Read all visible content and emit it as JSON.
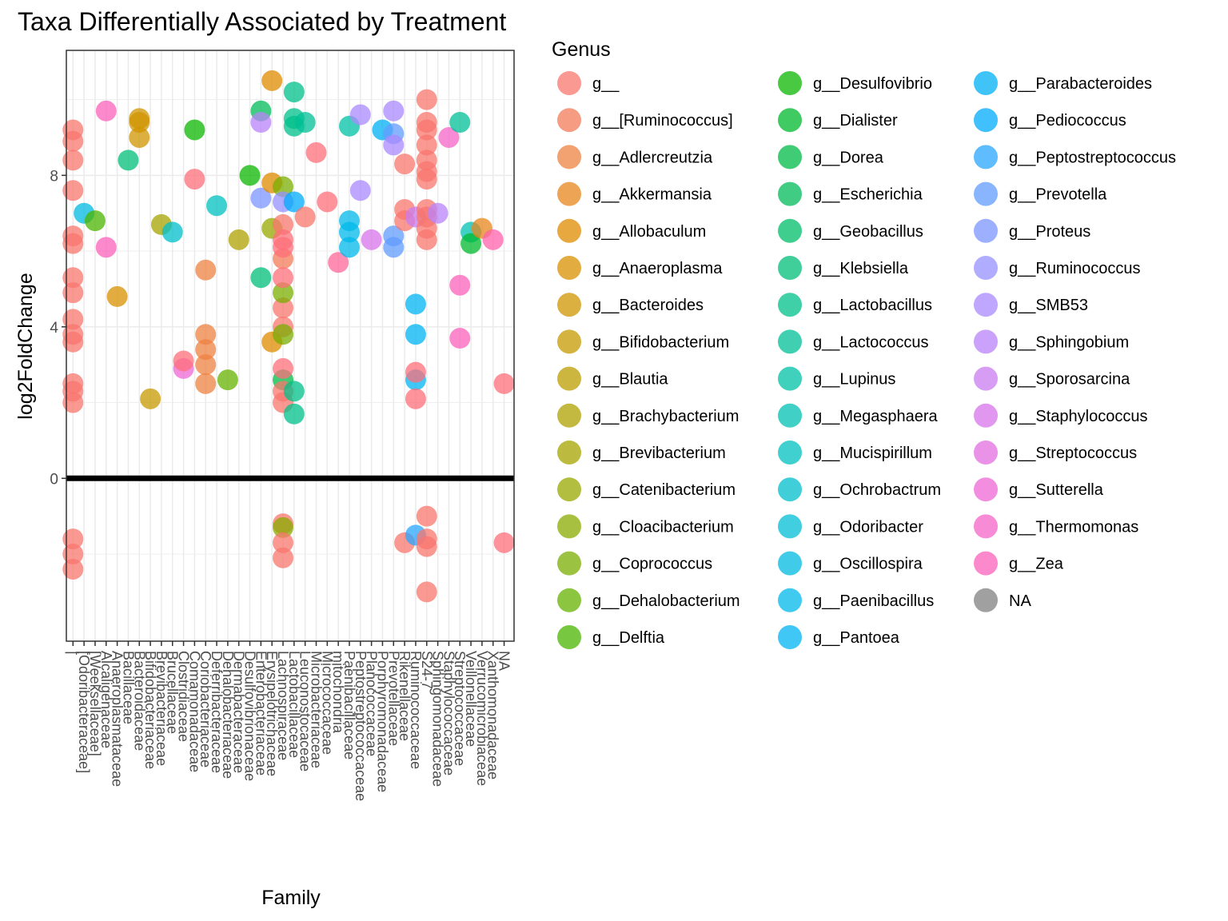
{
  "chart_data": {
    "type": "scatter",
    "title": "Taxa Differentially Associated by Treatment",
    "xlabel": "Family",
    "ylabel": "log2FoldChange",
    "ylim": [
      -4.3,
      11.3
    ],
    "yticks": [
      0,
      4,
      8
    ],
    "reference_line": 0,
    "grid": true,
    "legend_position": "right",
    "legend_title": "Genus",
    "categories": [
      "",
      "[Odoribacteraceae]",
      "[Weeksellaceae]",
      "Alcaligenaceae",
      "Anaeroplasmataceae",
      "Bacillaceae",
      "Bacteroidaceae",
      "Bifidobacteriaceae",
      "Brevibacteriaceae",
      "Brucellaceae",
      "Clostridiaceae",
      "Comamonadaceae",
      "Coriobacteriaceae",
      "Deferribacteraceae",
      "Dehalobacteriaceae",
      "Dermabacteraceae",
      "Desulfovibrionaceae",
      "Enterobacteriaceae",
      "Erysipelotrichaceae",
      "Lachnospiraceae",
      "Lactobacillaceae",
      "Leuconostocaceae",
      "Microbacteriaceae",
      "Micrococcaceae",
      "mitochondria",
      "Paenibacillaceae",
      "Peptostreptococcaceae",
      "Planococcaceae",
      "Porphyromonadaceae",
      "Prevotellaceae",
      "Rikenellaceae",
      "Ruminococcaceae",
      "S24-7",
      "Sphingomonadaceae",
      "Staphylococcaceae",
      "Streptococcaceae",
      "Veillonellaceae",
      "Verrucomicrobiaceae",
      "Xanthomonadaceae",
      "NA"
    ],
    "genera": [
      {
        "name": "g__",
        "color": "#F8766D"
      },
      {
        "name": "g__[Ruminococcus]",
        "color": "#F37B59"
      },
      {
        "name": "g__Adlercreutzia",
        "color": "#ED8141"
      },
      {
        "name": "g__Akkermansia",
        "color": "#E7861B"
      },
      {
        "name": "g__Allobaculum",
        "color": "#DF8B00"
      },
      {
        "name": "g__Anaeroplasma",
        "color": "#D89000"
      },
      {
        "name": "g__Bacteroides",
        "color": "#CF9400"
      },
      {
        "name": "g__Bifidobacterium",
        "color": "#C59900"
      },
      {
        "name": "g__Blautia",
        "color": "#BB9D00"
      },
      {
        "name": "g__Brachybacterium",
        "color": "#B0A100"
      },
      {
        "name": "g__Brevibacterium",
        "color": "#A5A400"
      },
      {
        "name": "g__Catenibacterium",
        "color": "#98A800"
      },
      {
        "name": "g__Cloacibacterium",
        "color": "#8AAB00"
      },
      {
        "name": "g__Coprococcus",
        "color": "#7AAE00"
      },
      {
        "name": "g__Dehalobacterium",
        "color": "#66B100"
      },
      {
        "name": "g__Delftia",
        "color": "#4BB400"
      },
      {
        "name": "g__Desulfovibrio",
        "color": "#0CB702"
      },
      {
        "name": "g__Dialister",
        "color": "#00B92D"
      },
      {
        "name": "g__Dorea",
        "color": "#00BB46"
      },
      {
        "name": "g__Escherichia",
        "color": "#00BC59"
      },
      {
        "name": "g__Geobacillus",
        "color": "#00BE6A"
      },
      {
        "name": "g__Klebsiella",
        "color": "#00BF7A"
      },
      {
        "name": "g__Lactobacillus",
        "color": "#00C089"
      },
      {
        "name": "g__Lactococcus",
        "color": "#00C097"
      },
      {
        "name": "g__Lupinus",
        "color": "#00C1A5"
      },
      {
        "name": "g__Megasphaera",
        "color": "#00C0B2"
      },
      {
        "name": "g__Mucispirillum",
        "color": "#00C0BF"
      },
      {
        "name": "g__Ochrobactrum",
        "color": "#00BFCB"
      },
      {
        "name": "g__Odoribacter",
        "color": "#00BDD6"
      },
      {
        "name": "g__Oscillospira",
        "color": "#00BBE0"
      },
      {
        "name": "g__Paenibacillus",
        "color": "#00B8EA"
      },
      {
        "name": "g__Pantoea",
        "color": "#00B4F3"
      },
      {
        "name": "g__Parabacteroides",
        "color": "#00B0F6"
      },
      {
        "name": "g__Pediococcus",
        "color": "#00ABFB"
      },
      {
        "name": "g__Peptostreptococcus",
        "color": "#28A5FF"
      },
      {
        "name": "g__Prevotella",
        "color": "#619CFF"
      },
      {
        "name": "g__Proteus",
        "color": "#7C96FF"
      },
      {
        "name": "g__Ruminococcus",
        "color": "#9590FF"
      },
      {
        "name": "g__SMB53",
        "color": "#A989FF"
      },
      {
        "name": "g__Sphingobium",
        "color": "#BA83F9"
      },
      {
        "name": "g__Sporosarcina",
        "color": "#C97CF2"
      },
      {
        "name": "g__Staphylococcus",
        "color": "#D774EA"
      },
      {
        "name": "g__Streptococcus",
        "color": "#E36DE0"
      },
      {
        "name": "g__Sutterella",
        "color": "#ED67D5"
      },
      {
        "name": "g__Thermomonas",
        "color": "#F564C8"
      },
      {
        "name": "g__Zea",
        "color": "#FB61BB"
      },
      {
        "name": "NA",
        "color": "#FF61AB"
      },
      {
        "name": "",
        "color": "#FF659A"
      },
      {
        "name": "",
        "color": "#FF6A89"
      },
      {
        "name": "",
        "color": "#FE6F79"
      },
      {
        "name": "",
        "color": "#808080"
      }
    ],
    "points": [
      {
        "family": "",
        "genus": 0,
        "y": 9.2
      },
      {
        "family": "",
        "genus": 0,
        "y": 8.9
      },
      {
        "family": "",
        "genus": 0,
        "y": 8.4
      },
      {
        "family": "",
        "genus": 0,
        "y": 7.6
      },
      {
        "family": "",
        "genus": 0,
        "y": 6.4
      },
      {
        "family": "",
        "genus": 0,
        "y": 6.2
      },
      {
        "family": "",
        "genus": 0,
        "y": 5.3
      },
      {
        "family": "",
        "genus": 0,
        "y": 4.9
      },
      {
        "family": "",
        "genus": 0,
        "y": 4.2
      },
      {
        "family": "",
        "genus": 0,
        "y": 3.8
      },
      {
        "family": "",
        "genus": 0,
        "y": 3.6
      },
      {
        "family": "",
        "genus": 0,
        "y": 2.5
      },
      {
        "family": "",
        "genus": 0,
        "y": 2.3
      },
      {
        "family": "",
        "genus": 0,
        "y": 2.0
      },
      {
        "family": "",
        "genus": 0,
        "y": -1.6
      },
      {
        "family": "",
        "genus": 0,
        "y": -2.0
      },
      {
        "family": "",
        "genus": 0,
        "y": -2.4
      },
      {
        "family": "[Odoribacteraceae]",
        "genus": 29,
        "y": 7.0
      },
      {
        "family": "[Weeksellaceae]",
        "genus": 15,
        "y": 6.8
      },
      {
        "family": "Alcaligenaceae",
        "genus": 45,
        "y": 9.7
      },
      {
        "family": "Alcaligenaceae",
        "genus": 45,
        "y": 6.1
      },
      {
        "family": "Anaeroplasmataceae",
        "genus": 5,
        "y": 4.8
      },
      {
        "family": "Bacillaceae",
        "genus": 21,
        "y": 8.4
      },
      {
        "family": "Bacteroidaceae",
        "genus": 6,
        "y": 9.5
      },
      {
        "family": "Bacteroidaceae",
        "genus": 6,
        "y": 9.4
      },
      {
        "family": "Bacteroidaceae",
        "genus": 6,
        "y": 9.0
      },
      {
        "family": "Bifidobacteriaceae",
        "genus": 7,
        "y": 2.1
      },
      {
        "family": "Brevibacteriaceae",
        "genus": 10,
        "y": 6.7
      },
      {
        "family": "Brucellaceae",
        "genus": 27,
        "y": 6.5
      },
      {
        "family": "Clostridiaceae",
        "genus": 43,
        "y": 2.9
      },
      {
        "family": "Clostridiaceae",
        "genus": 49,
        "y": 3.1
      },
      {
        "family": "Comamonadaceae",
        "genus": 16,
        "y": 9.2
      },
      {
        "family": "Comamonadaceae",
        "genus": 49,
        "y": 7.9
      },
      {
        "family": "Coriobacteriaceae",
        "genus": 2,
        "y": 5.5
      },
      {
        "family": "Coriobacteriaceae",
        "genus": 2,
        "y": 3.8
      },
      {
        "family": "Coriobacteriaceae",
        "genus": 2,
        "y": 3.4
      },
      {
        "family": "Coriobacteriaceae",
        "genus": 2,
        "y": 3.0
      },
      {
        "family": "Coriobacteriaceae",
        "genus": 2,
        "y": 2.5
      },
      {
        "family": "Deferribacteraceae",
        "genus": 26,
        "y": 7.2
      },
      {
        "family": "Dehalobacteriaceae",
        "genus": 14,
        "y": 2.6
      },
      {
        "family": "Dermabacteraceae",
        "genus": 9,
        "y": 6.3
      },
      {
        "family": "Desulfovibrionaceae",
        "genus": 16,
        "y": 8.0
      },
      {
        "family": "Enterobacteriaceae",
        "genus": 19,
        "y": 9.7
      },
      {
        "family": "Enterobacteriaceae",
        "genus": 36,
        "y": 7.4
      },
      {
        "family": "Enterobacteriaceae",
        "genus": 39,
        "y": 9.4
      },
      {
        "family": "Enterobacteriaceae",
        "genus": 21,
        "y": 5.3
      },
      {
        "family": "Erysipelotrichaceae",
        "genus": 4,
        "y": 10.5
      },
      {
        "family": "Erysipelotrichaceae",
        "genus": 4,
        "y": 7.8
      },
      {
        "family": "Erysipelotrichaceae",
        "genus": 11,
        "y": 6.6
      },
      {
        "family": "Erysipelotrichaceae",
        "genus": 4,
        "y": 3.6
      },
      {
        "family": "Lachnospiraceae",
        "genus": 0,
        "y": 6.7
      },
      {
        "family": "Lachnospiraceae",
        "genus": 1,
        "y": 5.8
      },
      {
        "family": "Lachnospiraceae",
        "genus": 0,
        "y": 4.5
      },
      {
        "family": "Lachnospiraceae",
        "genus": 0,
        "y": 4.0
      },
      {
        "family": "Lachnospiraceae",
        "genus": 13,
        "y": 7.7
      },
      {
        "family": "Lachnospiraceae",
        "genus": 13,
        "y": 4.9
      },
      {
        "family": "Lachnospiraceae",
        "genus": 13,
        "y": 3.8
      },
      {
        "family": "Lachnospiraceae",
        "genus": 18,
        "y": 2.6
      },
      {
        "family": "Lachnospiraceae",
        "genus": 37,
        "y": 7.3
      },
      {
        "family": "Lachnospiraceae",
        "genus": 49,
        "y": 6.3
      },
      {
        "family": "Lachnospiraceae",
        "genus": 49,
        "y": 6.1
      },
      {
        "family": "Lachnospiraceae",
        "genus": 49,
        "y": 5.3
      },
      {
        "family": "Lachnospiraceae",
        "genus": 49,
        "y": 2.9
      },
      {
        "family": "Lachnospiraceae",
        "genus": 0,
        "y": 2.3
      },
      {
        "family": "Lachnospiraceae",
        "genus": 0,
        "y": 2.0
      },
      {
        "family": "Lachnospiraceae",
        "genus": 0,
        "y": -1.2
      },
      {
        "family": "Lachnospiraceae",
        "genus": 12,
        "y": -1.3
      },
      {
        "family": "Lachnospiraceae",
        "genus": 0,
        "y": -1.7
      },
      {
        "family": "Lachnospiraceae",
        "genus": 0,
        "y": -2.1
      },
      {
        "family": "Lactobacillaceae",
        "genus": 22,
        "y": 10.2
      },
      {
        "family": "Lactobacillaceae",
        "genus": 22,
        "y": 9.5
      },
      {
        "family": "Lactobacillaceae",
        "genus": 22,
        "y": 9.3
      },
      {
        "family": "Lactobacillaceae",
        "genus": 22,
        "y": 2.3
      },
      {
        "family": "Lactobacillaceae",
        "genus": 22,
        "y": 1.7
      },
      {
        "family": "Lactobacillaceae",
        "genus": 33,
        "y": 7.3
      },
      {
        "family": "Leuconostocaceae",
        "genus": 23,
        "y": 9.4
      },
      {
        "family": "Leuconostocaceae",
        "genus": 0,
        "y": 6.9
      },
      {
        "family": "Microbacteriaceae",
        "genus": 49,
        "y": 8.6
      },
      {
        "family": "Micrococcaceae",
        "genus": 49,
        "y": 7.3
      },
      {
        "family": "mitochondria",
        "genus": 47,
        "y": 5.7
      },
      {
        "family": "Paenibacillaceae",
        "genus": 24,
        "y": 9.3
      },
      {
        "family": "Paenibacillaceae",
        "genus": 30,
        "y": 6.8
      },
      {
        "family": "Paenibacillaceae",
        "genus": 30,
        "y": 6.5
      },
      {
        "family": "Paenibacillaceae",
        "genus": 30,
        "y": 6.1
      },
      {
        "family": "Peptostreptococcaceae",
        "genus": 38,
        "y": 9.6
      },
      {
        "family": "Peptostreptococcaceae",
        "genus": 38,
        "y": 7.6
      },
      {
        "family": "Planococcaceae",
        "genus": 41,
        "y": 6.3
      },
      {
        "family": "Porphyromonadaceae",
        "genus": 32,
        "y": 9.2
      },
      {
        "family": "Prevotellaceae",
        "genus": 38,
        "y": 9.7
      },
      {
        "family": "Prevotellaceae",
        "genus": 35,
        "y": 9.1
      },
      {
        "family": "Prevotellaceae",
        "genus": 38,
        "y": 8.8
      },
      {
        "family": "Prevotellaceae",
        "genus": 35,
        "y": 6.4
      },
      {
        "family": "Prevotellaceae",
        "genus": 35,
        "y": 6.1
      },
      {
        "family": "Rikenellaceae",
        "genus": 0,
        "y": 8.3
      },
      {
        "family": "Rikenellaceae",
        "genus": 0,
        "y": 7.1
      },
      {
        "family": "Rikenellaceae",
        "genus": 0,
        "y": 6.8
      },
      {
        "family": "Rikenellaceae",
        "genus": 0,
        "y": -1.7
      },
      {
        "family": "Ruminococcaceae",
        "genus": 40,
        "y": 6.9
      },
      {
        "family": "Ruminococcaceae",
        "genus": 31,
        "y": 4.6
      },
      {
        "family": "Ruminococcaceae",
        "genus": 31,
        "y": 3.8
      },
      {
        "family": "Ruminococcaceae",
        "genus": 31,
        "y": 2.6
      },
      {
        "family": "Ruminococcaceae",
        "genus": 49,
        "y": 2.8
      },
      {
        "family": "Ruminococcaceae",
        "genus": 49,
        "y": 2.1
      },
      {
        "family": "Ruminococcaceae",
        "genus": 34,
        "y": -1.5
      },
      {
        "family": "S24-7",
        "genus": 0,
        "y": 10.0
      },
      {
        "family": "S24-7",
        "genus": 0,
        "y": 9.4
      },
      {
        "family": "S24-7",
        "genus": 0,
        "y": 9.2
      },
      {
        "family": "S24-7",
        "genus": 0,
        "y": 8.8
      },
      {
        "family": "S24-7",
        "genus": 0,
        "y": 8.4
      },
      {
        "family": "S24-7",
        "genus": 0,
        "y": 8.1
      },
      {
        "family": "S24-7",
        "genus": 0,
        "y": 7.9
      },
      {
        "family": "S24-7",
        "genus": 0,
        "y": 7.1
      },
      {
        "family": "S24-7",
        "genus": 0,
        "y": 6.9
      },
      {
        "family": "S24-7",
        "genus": 0,
        "y": 6.6
      },
      {
        "family": "S24-7",
        "genus": 0,
        "y": 6.3
      },
      {
        "family": "S24-7",
        "genus": 0,
        "y": -1.0
      },
      {
        "family": "S24-7",
        "genus": 0,
        "y": -1.6
      },
      {
        "family": "S24-7",
        "genus": 0,
        "y": -1.8
      },
      {
        "family": "S24-7",
        "genus": 0,
        "y": -3.0
      },
      {
        "family": "Sphingomonadaceae",
        "genus": 39,
        "y": 7.0
      },
      {
        "family": "Staphylococcaceae",
        "genus": 44,
        "y": 9.0
      },
      {
        "family": "Streptococcaceae",
        "genus": 45,
        "y": 5.1
      },
      {
        "family": "Streptococcaceae",
        "genus": 45,
        "y": 3.7
      },
      {
        "family": "Streptococcaceae",
        "genus": 23,
        "y": 9.4
      },
      {
        "family": "Veillonellaceae",
        "genus": 25,
        "y": 6.5
      },
      {
        "family": "Veillonellaceae",
        "genus": 17,
        "y": 6.2
      },
      {
        "family": "Verrucomicrobiaceae",
        "genus": 3,
        "y": 6.6
      },
      {
        "family": "Xanthomonadaceae",
        "genus": 46,
        "y": 6.3
      },
      {
        "family": "NA",
        "genus": 49,
        "y": 2.5
      },
      {
        "family": "NA",
        "genus": 49,
        "y": -1.7
      }
    ]
  }
}
